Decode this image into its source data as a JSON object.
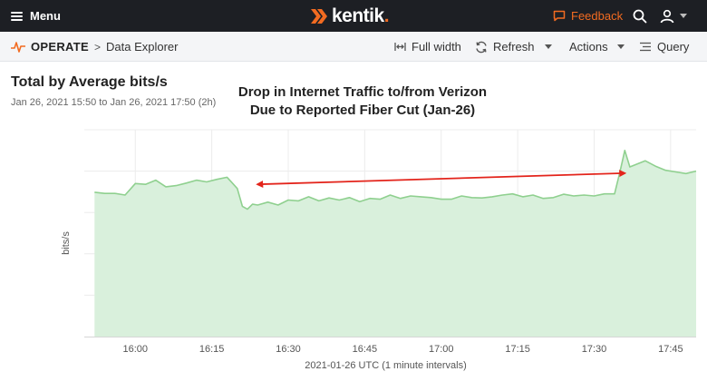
{
  "topbar": {
    "menu_label": "Menu",
    "logo_text": "kentik",
    "feedback_label": "Feedback",
    "icons": [
      "hamburger-icon",
      "kentik-logo",
      "feedback-icon",
      "search-icon",
      "user-icon",
      "chevron-down-icon"
    ]
  },
  "subbar": {
    "section": "OPERATE",
    "separator": ">",
    "page": "Data Explorer",
    "full_width_label": "Full width",
    "refresh_label": "Refresh",
    "actions_label": "Actions",
    "query_label": "Query"
  },
  "panel": {
    "title": "Total by Average bits/s",
    "date_range": "Jan 26, 2021 15:50 to Jan 26, 2021 17:50 (2h)",
    "annotation_line1": "Drop in Internet Traffic to/from Verizon",
    "annotation_line2": "Due to Reported Fiber Cut (Jan-26)"
  },
  "colors": {
    "accent": "#f26b21",
    "topbar_bg": "#1d1f24",
    "series_line": "#8fd08f",
    "series_fill": "#d9f0dc",
    "annotation_arrow": "#e3241b"
  },
  "chart_data": {
    "type": "area",
    "title": "",
    "xlabel": "2021-01-26 UTC (1 minute intervals)",
    "ylabel": "bits/s",
    "x_ticks": [
      "16:00",
      "16:15",
      "16:30",
      "16:45",
      "17:00",
      "17:15",
      "17:30",
      "17:45"
    ],
    "x_range": [
      "15:50",
      "17:50"
    ],
    "x_start_minutes": 950,
    "y_ticks_shown": false,
    "ylim": [
      0,
      5
    ],
    "grid": true,
    "series": [
      {
        "name": "",
        "x": [
          "15:52",
          "15:54",
          "15:56",
          "15:58",
          "16:00",
          "16:02",
          "16:04",
          "16:06",
          "16:08",
          "16:10",
          "16:12",
          "16:14",
          "16:16",
          "16:18",
          "16:20",
          "16:21",
          "16:22",
          "16:23",
          "16:24",
          "16:26",
          "16:28",
          "16:30",
          "16:32",
          "16:34",
          "16:36",
          "16:38",
          "16:40",
          "16:42",
          "16:44",
          "16:46",
          "16:48",
          "16:50",
          "16:52",
          "16:54",
          "16:56",
          "16:58",
          "17:00",
          "17:02",
          "17:04",
          "17:06",
          "17:08",
          "17:10",
          "17:12",
          "17:14",
          "17:16",
          "17:18",
          "17:20",
          "17:22",
          "17:24",
          "17:26",
          "17:28",
          "17:30",
          "17:32",
          "17:34",
          "17:35",
          "17:36",
          "17:37",
          "17:38",
          "17:40",
          "17:42",
          "17:44",
          "17:46",
          "17:48",
          "17:50"
        ],
        "values": [
          3.49,
          3.46,
          3.46,
          3.42,
          3.7,
          3.68,
          3.78,
          3.62,
          3.65,
          3.71,
          3.78,
          3.74,
          3.8,
          3.85,
          3.58,
          3.15,
          3.08,
          3.2,
          3.18,
          3.25,
          3.18,
          3.3,
          3.28,
          3.38,
          3.28,
          3.35,
          3.3,
          3.36,
          3.26,
          3.34,
          3.32,
          3.42,
          3.34,
          3.4,
          3.38,
          3.36,
          3.32,
          3.32,
          3.4,
          3.36,
          3.35,
          3.38,
          3.42,
          3.45,
          3.38,
          3.42,
          3.34,
          3.36,
          3.44,
          3.4,
          3.42,
          3.4,
          3.45,
          3.45,
          3.95,
          4.5,
          4.1,
          4.15,
          4.25,
          4.12,
          4.02,
          3.98,
          3.94,
          4.0
        ]
      }
    ],
    "annotation_arrow": {
      "from": {
        "x": "16:24",
        "y": 3.68
      },
      "to": {
        "x": "17:36",
        "y": 3.95
      }
    }
  }
}
